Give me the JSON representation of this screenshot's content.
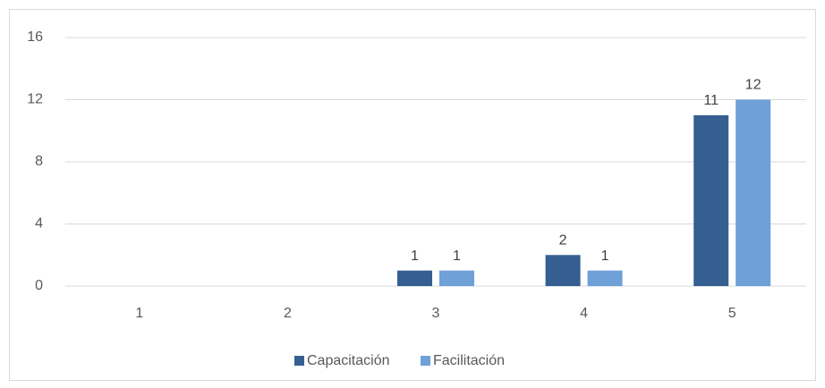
{
  "chart_data": {
    "type": "bar",
    "categories": [
      "1",
      "2",
      "3",
      "4",
      "5"
    ],
    "series": [
      {
        "name": "Capacitación",
        "color": "#365f91",
        "values": [
          null,
          null,
          1,
          2,
          11
        ]
      },
      {
        "name": "Facilitación",
        "color": "#6fa0d8",
        "values": [
          null,
          null,
          1,
          1,
          12
        ]
      }
    ],
    "ylim": [
      0,
      16
    ],
    "yticks": [
      0,
      4,
      8,
      12,
      16
    ],
    "grid": true,
    "legend": "bottom"
  }
}
